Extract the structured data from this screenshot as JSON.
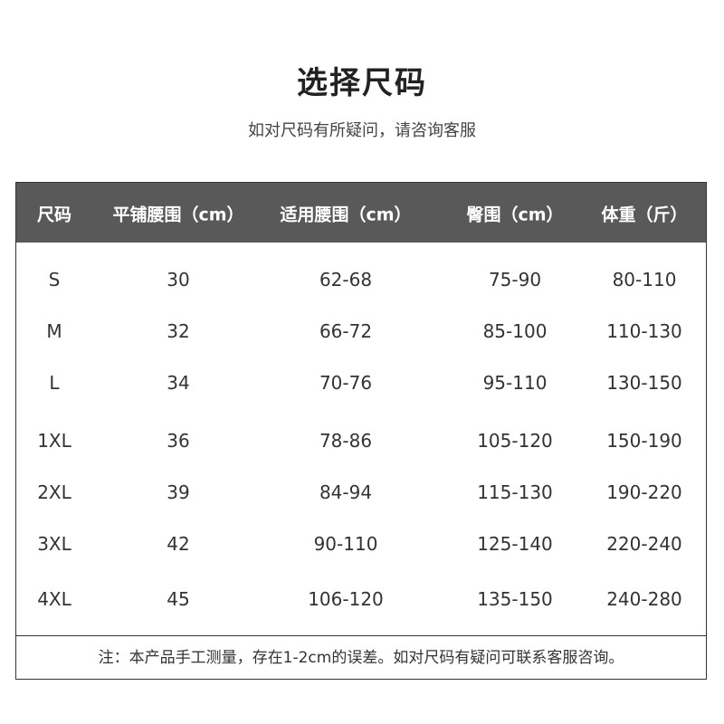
{
  "title": "选择尺码",
  "subtitle": "如对尺码有所疑问，请咨询客服",
  "table": {
    "headers": [
      "尺码",
      "平铺腰围（cm）",
      "适用腰围（cm）",
      "臀围（cm）",
      "体重（斤）"
    ],
    "rows": [
      [
        "S",
        "30",
        "62-68",
        "75-90",
        "80-110"
      ],
      [
        "M",
        "32",
        "66-72",
        "85-100",
        "110-130"
      ],
      [
        "L",
        "34",
        "70-76",
        "95-110",
        "130-150"
      ],
      [
        "1XL",
        "36",
        "78-86",
        "105-120",
        "150-190"
      ],
      [
        "2XL",
        "39",
        "84-94",
        "115-130",
        "190-220"
      ],
      [
        "3XL",
        "42",
        "90-110",
        "125-140",
        "220-240"
      ],
      [
        "4XL",
        "45",
        "106-120",
        "135-150",
        "240-280"
      ]
    ],
    "header_bg": "#5a595a"
  },
  "note": "注：本产品手工测量，存在1-2cm的误差。如对尺码有疑问可联系客服咨询。"
}
